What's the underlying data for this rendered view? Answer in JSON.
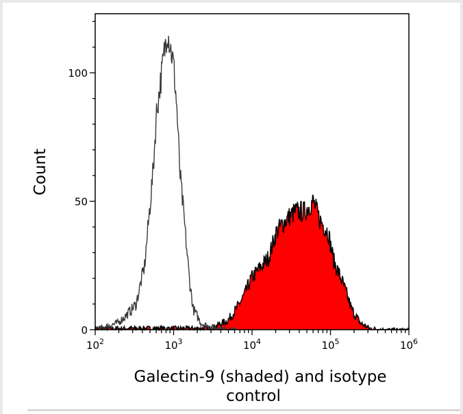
{
  "chart_data": {
    "type": "area",
    "xlabel_line1": "Galectin-9 (shaded) and isotype",
    "xlabel_line2": "control",
    "ylabel": "Count",
    "xscale": "log",
    "xlim": [
      100,
      1000000
    ],
    "ylim": [
      0,
      123
    ],
    "grid": false,
    "x_ticks": [
      {
        "base": "10",
        "exp": "2"
      },
      {
        "base": "10",
        "exp": "3"
      },
      {
        "base": "10",
        "exp": "4"
      },
      {
        "base": "10",
        "exp": "5"
      },
      {
        "base": "10",
        "exp": "6"
      }
    ],
    "y_ticks": [
      "0",
      "50",
      "100"
    ],
    "series": [
      {
        "key": "isotype",
        "style": "outline",
        "color": "#3a3a3a",
        "x": [
          100,
          195,
          251,
          331,
          427,
          550,
          603,
          832,
          1000,
          1096,
          1202,
          1380,
          1585,
          1778,
          2239,
          2884,
          3981,
          6310
        ],
        "y": [
          0,
          2.6,
          5.7,
          9.8,
          25,
          62.5,
          84,
          117,
          103,
          87,
          61,
          41,
          20,
          8,
          2.6,
          1,
          0.5,
          0
        ]
      },
      {
        "key": "galectin-9",
        "style": "filled",
        "color": "#ff0000",
        "edge_color": "#000000",
        "x": [
          100,
          1000,
          3000,
          4898,
          6310,
          8128,
          9772,
          12589,
          16218,
          20417,
          27542,
          35481,
          46774,
          60256,
          72444,
          93325,
          109648,
          144544,
          186209,
          239883,
          316228,
          501187,
          1000000
        ],
        "y": [
          0.5,
          0.5,
          0.5,
          3.6,
          8,
          14,
          20,
          24,
          28,
          38,
          43,
          46,
          46,
          50,
          43,
          38,
          27,
          18,
          8,
          2.6,
          0.5,
          0,
          0
        ]
      }
    ]
  }
}
